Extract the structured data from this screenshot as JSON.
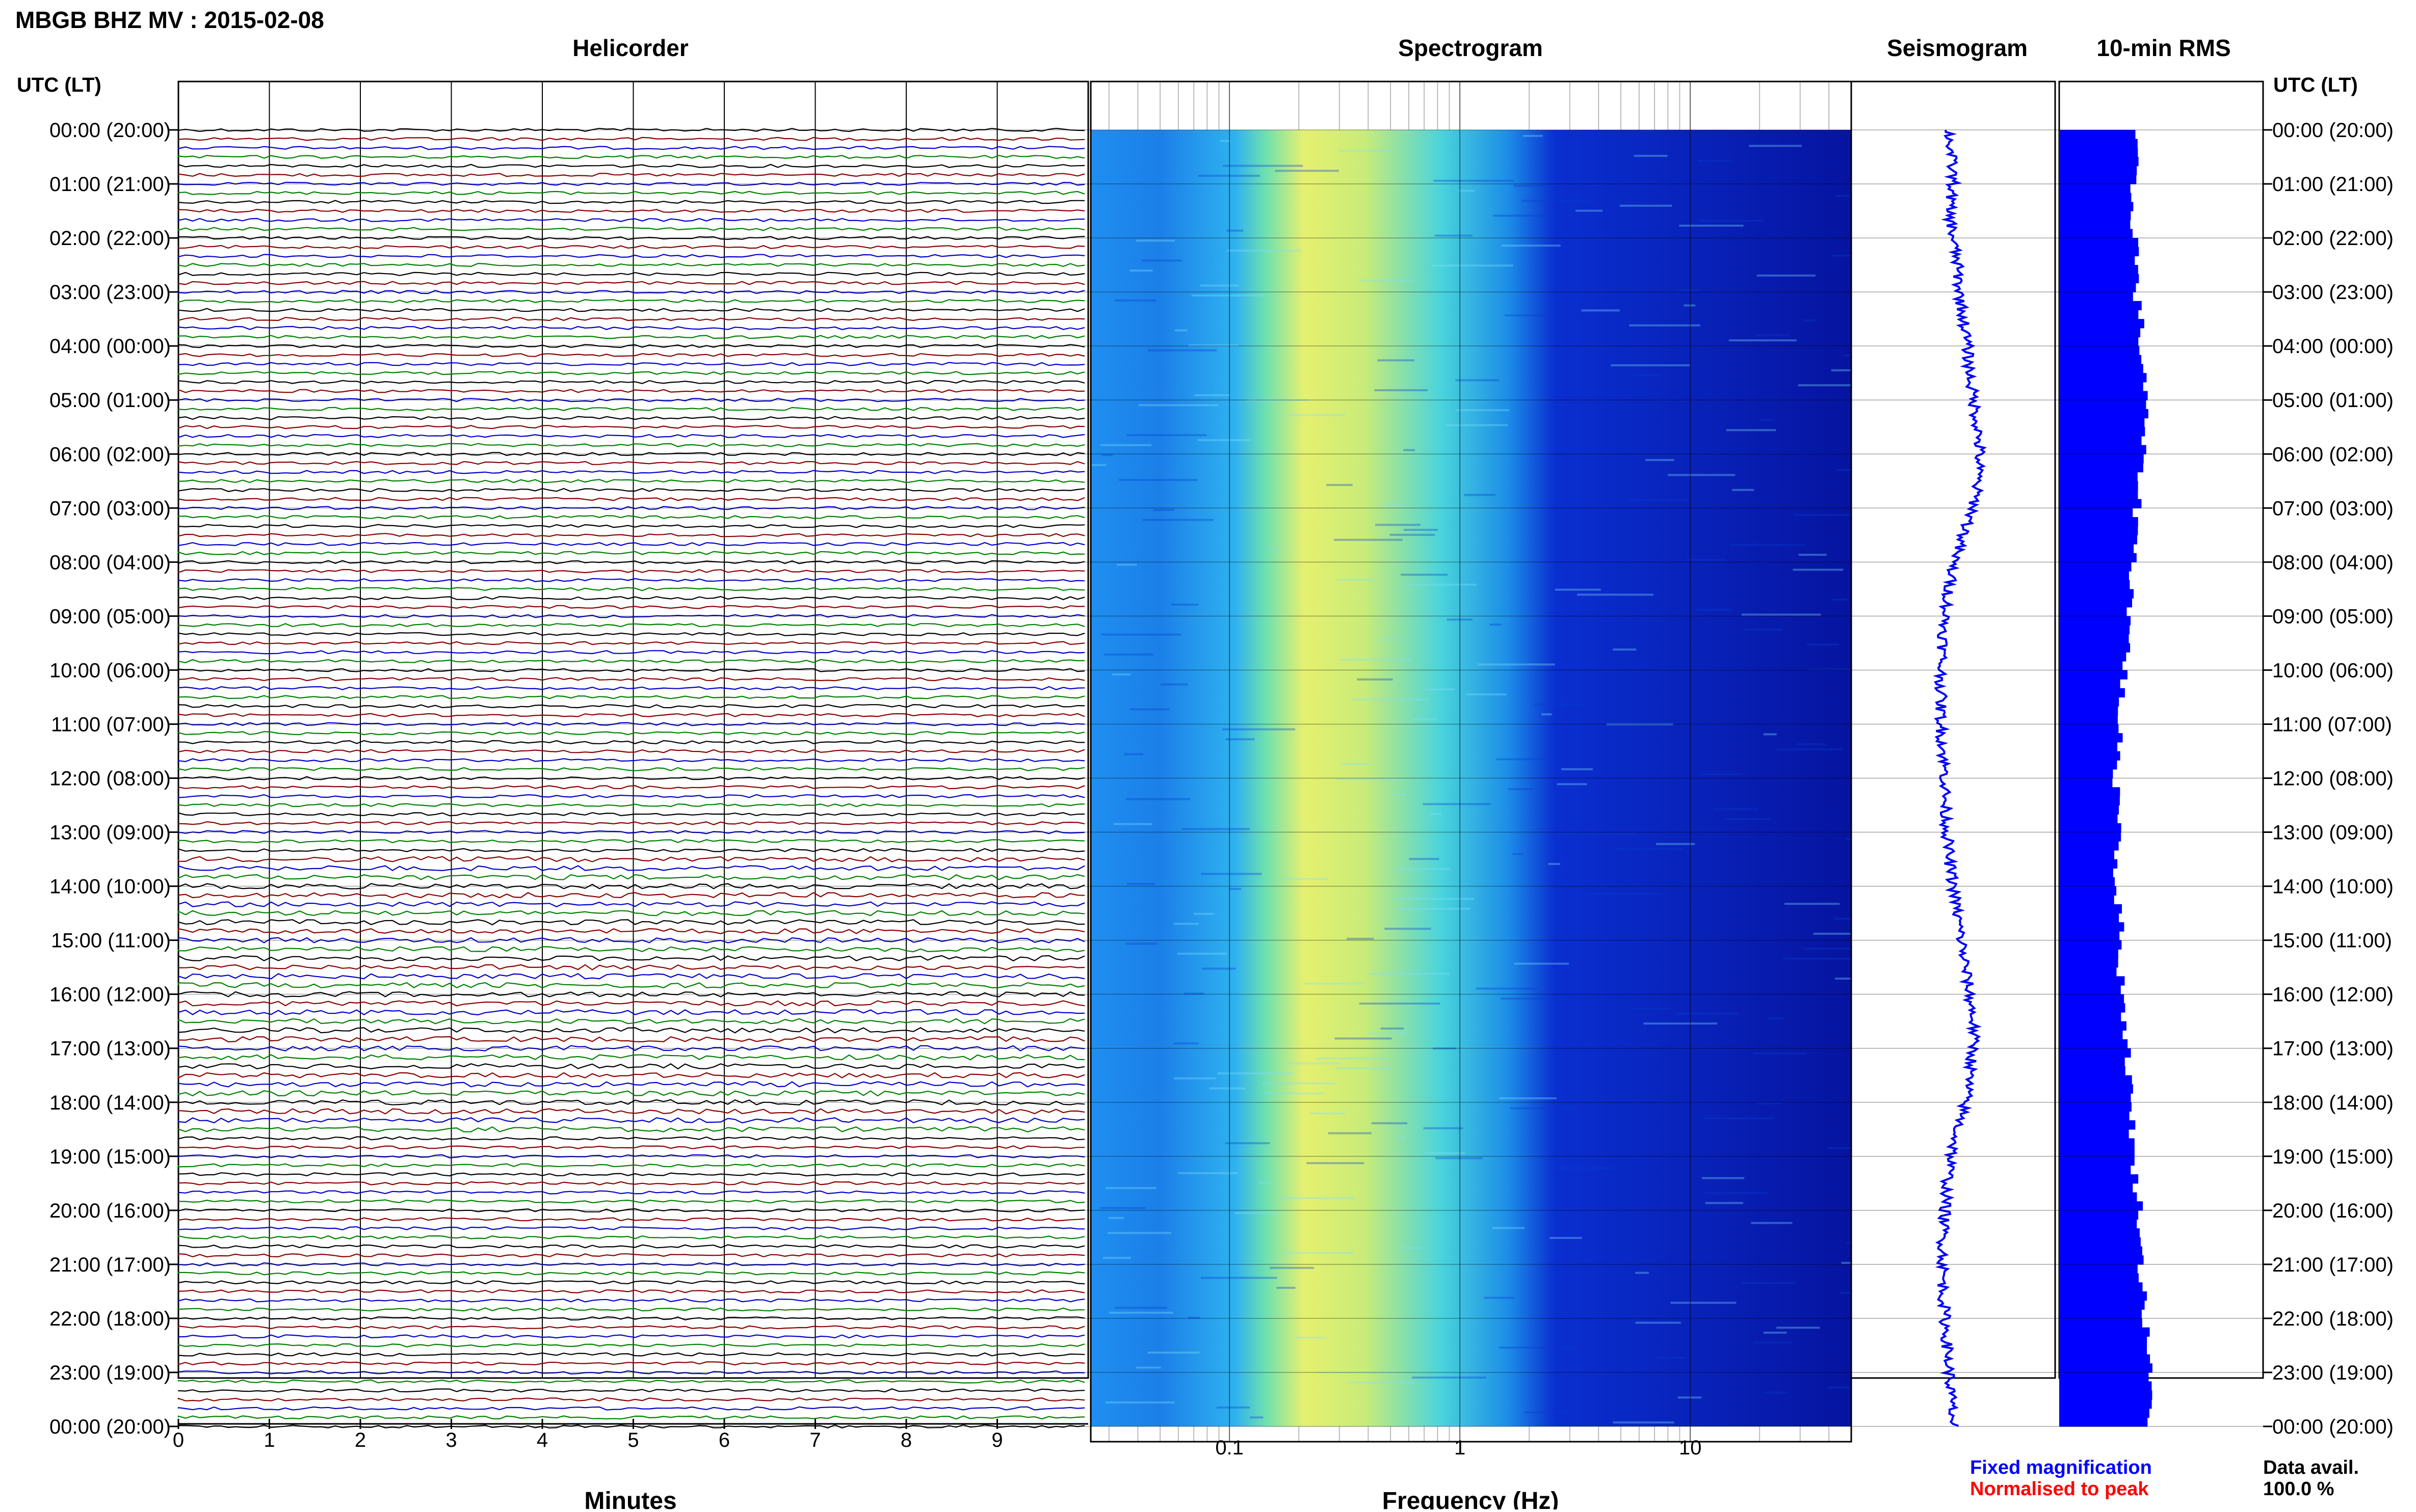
{
  "header": {
    "title": "MBGB BHZ MV : 2015-02-08",
    "left_axis_label": "UTC (LT)",
    "right_axis_label": "UTC (LT)"
  },
  "panels": {
    "helicorder": "Helicorder",
    "spectrogram": "Spectrogram",
    "seismogram": "Seismogram",
    "rms": "10-min RMS"
  },
  "time_labels": [
    "00:00 (20:00)",
    "01:00 (21:00)",
    "02:00 (22:00)",
    "03:00 (23:00)",
    "04:00 (00:00)",
    "05:00 (01:00)",
    "06:00 (02:00)",
    "07:00 (03:00)",
    "08:00 (04:00)",
    "09:00 (05:00)",
    "10:00 (06:00)",
    "11:00 (07:00)",
    "12:00 (08:00)",
    "13:00 (09:00)",
    "14:00 (10:00)",
    "15:00 (11:00)",
    "16:00 (12:00)",
    "17:00 (13:00)",
    "18:00 (14:00)",
    "19:00 (15:00)",
    "20:00 (16:00)",
    "21:00 (17:00)",
    "22:00 (18:00)",
    "23:00 (19:00)",
    "00:00 (20:00)"
  ],
  "footer": {
    "minutes_label": "Minutes",
    "frequency_label": "Frequency (Hz)",
    "legend_fixed": "Fixed magnification",
    "legend_normalised": "Normalised to peak",
    "data_avail_label": "Data avail.",
    "data_avail_value": "100.0 %"
  },
  "colors": {
    "trace_cycle": [
      "#000000",
      "#8b0000",
      "#0000cd",
      "#008000"
    ],
    "seismogram": "#0000ff",
    "rms": "#0000ff",
    "legend_fixed": "#0000ff",
    "legend_normalised": "#ff0000"
  },
  "chart_data": [
    {
      "type": "line",
      "name": "helicorder",
      "title": "Helicorder",
      "xlabel": "Minutes",
      "x_ticks": [
        "0",
        "1",
        "2",
        "3",
        "4",
        "5",
        "6",
        "7",
        "8",
        "9"
      ],
      "xlim": [
        0,
        10
      ],
      "rows_per_hour": 6,
      "hours": 24,
      "high_activity_hours": [
        13.5,
        18.5
      ]
    },
    {
      "type": "heatmap",
      "name": "spectrogram",
      "title": "Spectrogram",
      "xlabel": "Frequency (Hz)",
      "x_scale": "log",
      "x_ticks": [
        "0.1",
        "1",
        "10"
      ],
      "xlim": [
        0.025,
        50
      ],
      "colormap": "jet",
      "dominant_band_hz": [
        0.15,
        0.5
      ],
      "grid": true
    },
    {
      "type": "line",
      "name": "seismogram",
      "title": "Seismogram",
      "hours": 24,
      "offsets": [
        0.48,
        0.49,
        0.5,
        0.48,
        0.5,
        0.52,
        0.53,
        0.55,
        0.57,
        0.58,
        0.6,
        0.62,
        0.63,
        0.62,
        0.6,
        0.55,
        0.5,
        0.48,
        0.46,
        0.45,
        0.44,
        0.44,
        0.44,
        0.45,
        0.46,
        0.46,
        0.47,
        0.48,
        0.5,
        0.52,
        0.54,
        0.56,
        0.58,
        0.6,
        0.6,
        0.58,
        0.56,
        0.52,
        0.49,
        0.47,
        0.46,
        0.45,
        0.45,
        0.45,
        0.46,
        0.47,
        0.48,
        0.49,
        0.5
      ]
    },
    {
      "type": "bar",
      "name": "10-min-rms",
      "title": "10-min RMS",
      "hours": 24,
      "values": [
        0.37,
        0.37,
        0.36,
        0.36,
        0.38,
        0.38,
        0.38,
        0.4,
        0.4,
        0.42,
        0.42,
        0.42,
        0.4,
        0.4,
        0.38,
        0.38,
        0.36,
        0.36,
        0.34,
        0.34,
        0.32,
        0.3,
        0.3,
        0.28,
        0.28,
        0.3,
        0.3,
        0.28,
        0.28,
        0.3,
        0.3,
        0.3,
        0.32,
        0.32,
        0.34,
        0.34,
        0.36,
        0.36,
        0.36,
        0.38,
        0.4,
        0.4,
        0.4,
        0.42,
        0.42,
        0.44,
        0.44,
        0.45,
        0.45
      ]
    }
  ]
}
